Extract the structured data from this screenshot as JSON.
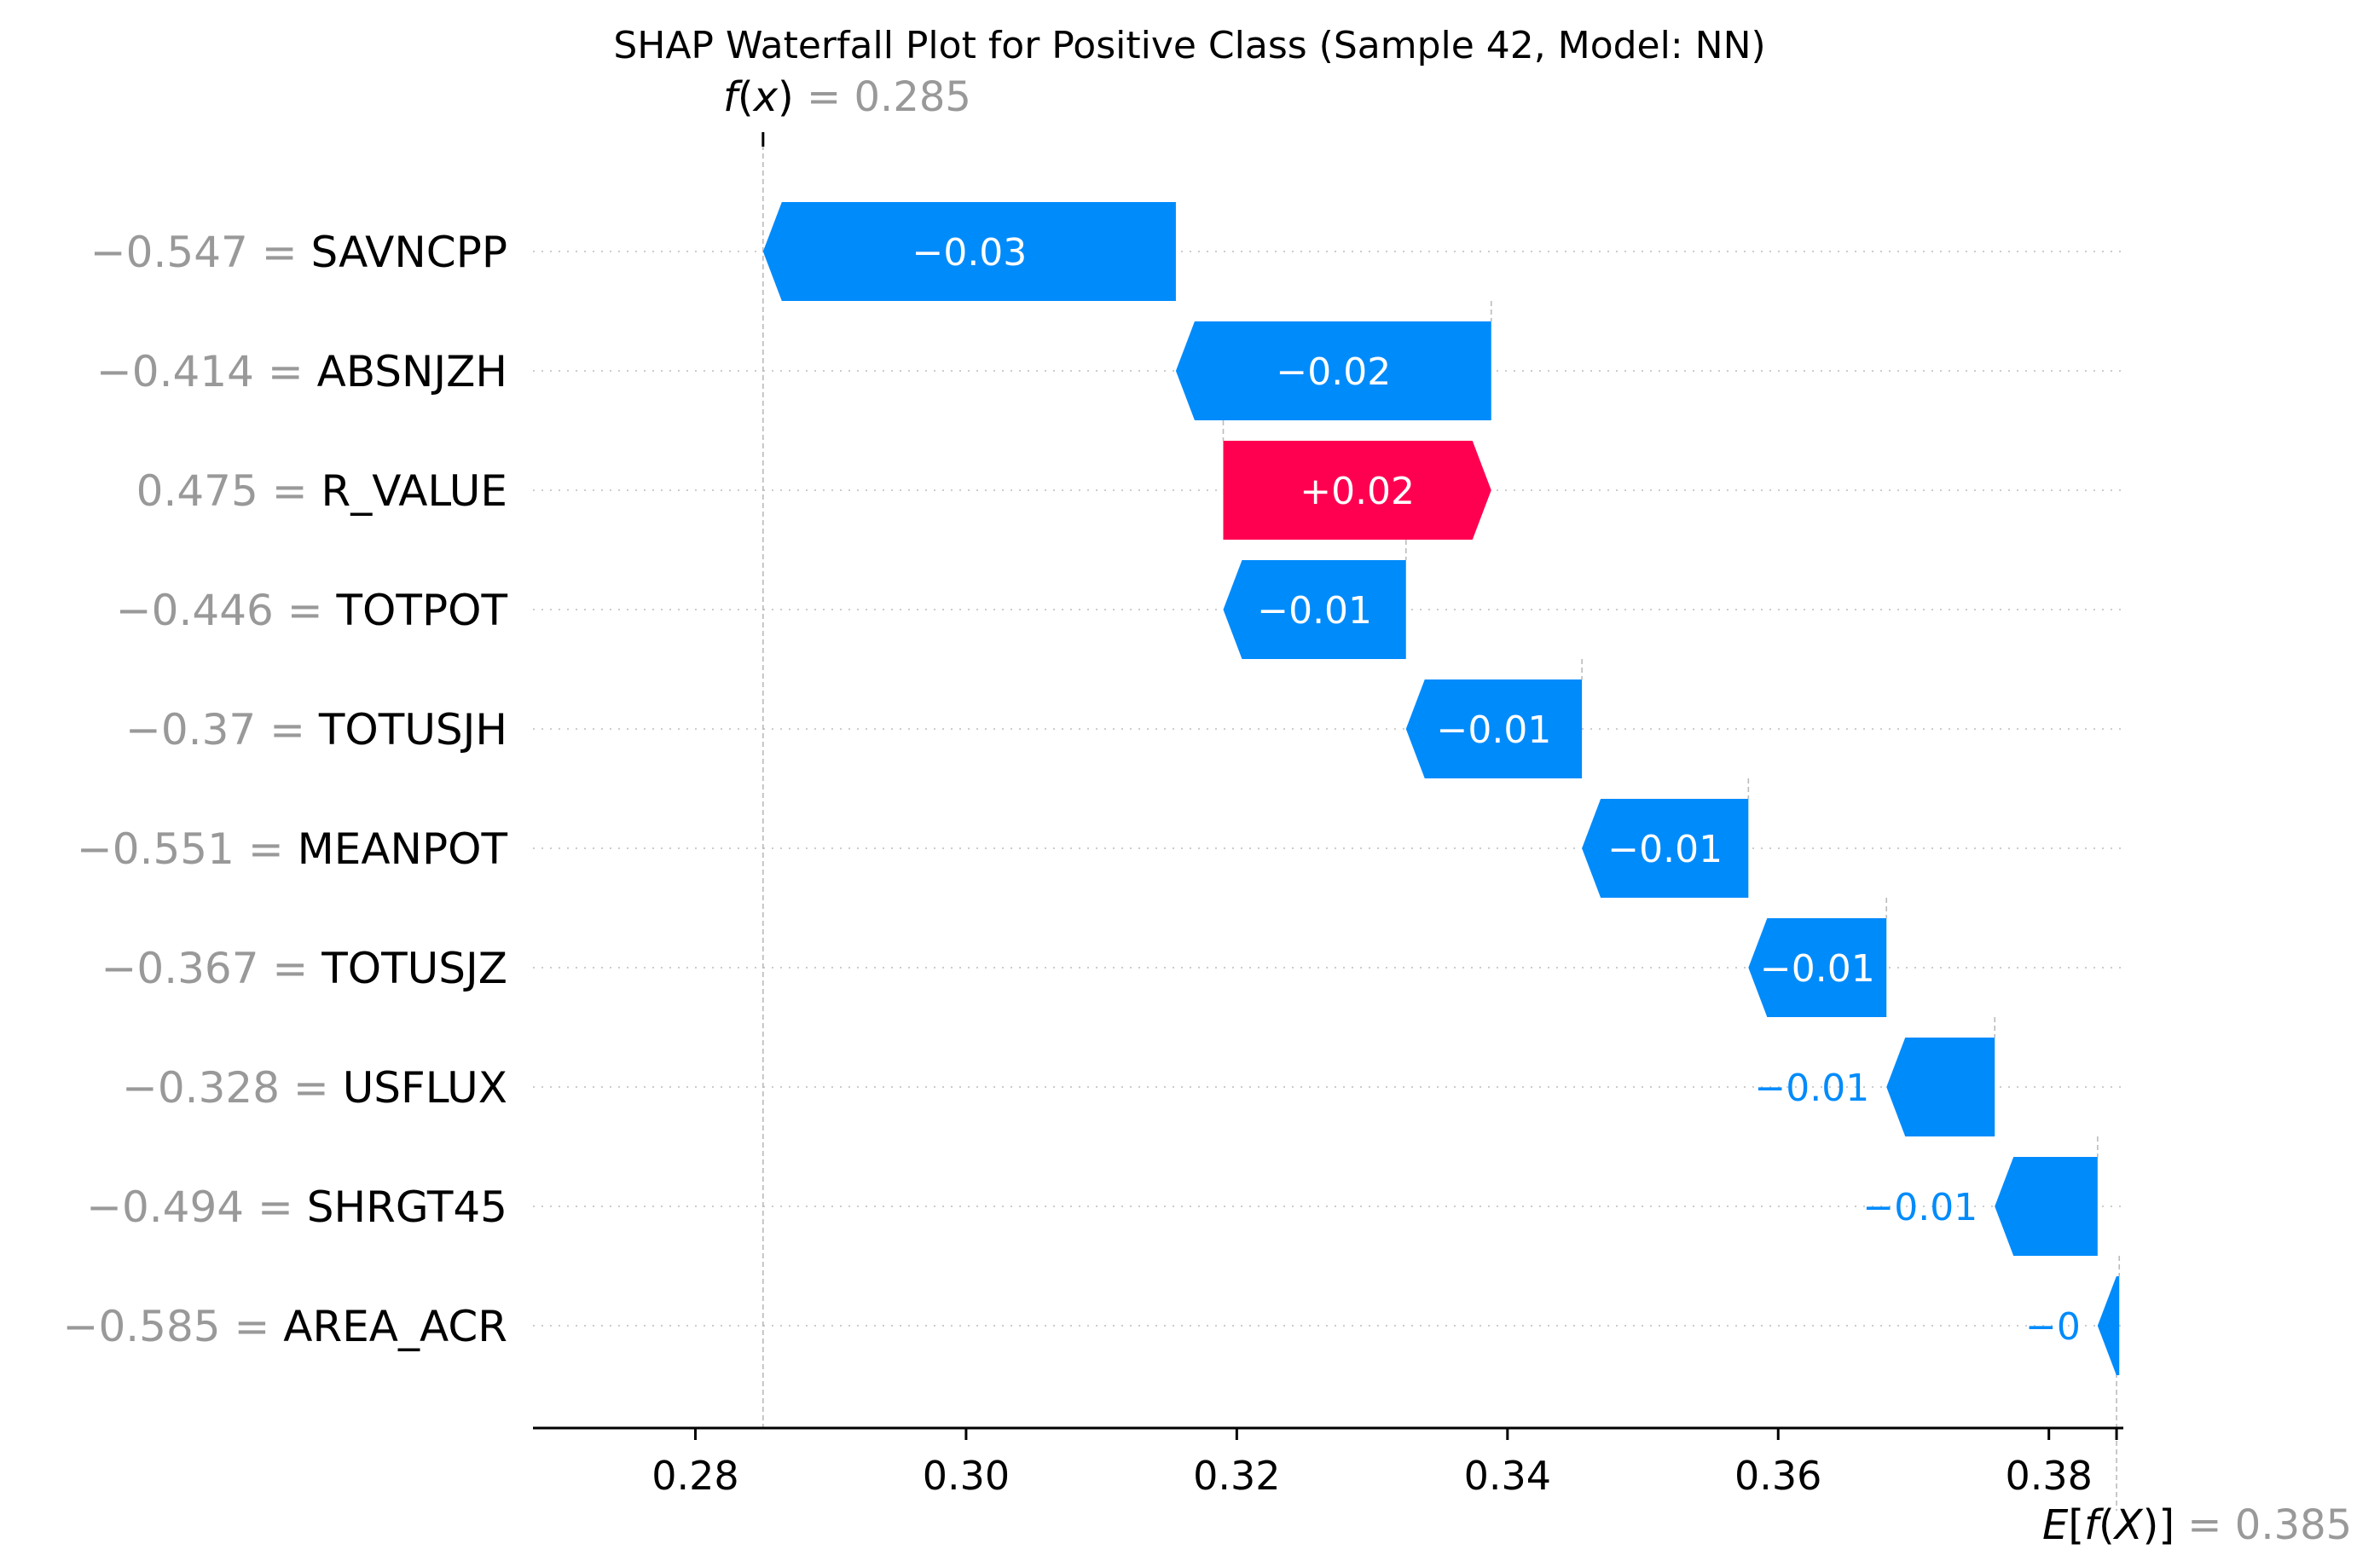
{
  "chart_data": {
    "type": "waterfall",
    "title": "SHAP Waterfall Plot for Positive Class (Sample 42, Model: NN)",
    "fx": {
      "label": "f(x)",
      "value": 0.285,
      "value_text": "0.285"
    },
    "base": {
      "label": "E[f(X)]",
      "value": 0.385,
      "value_text": "0.385"
    },
    "xlim": [
      0.268,
      0.3855
    ],
    "xticks": [
      0.28,
      0.3,
      0.32,
      0.34,
      0.36,
      0.38
    ],
    "xtick_labels": [
      "0.28",
      "0.30",
      "0.32",
      "0.34",
      "0.36",
      "0.38"
    ],
    "grid": "horizontal dotted per feature",
    "colors": {
      "negative": "#008bfb",
      "positive": "#ff0051",
      "muted": "#999999"
    },
    "features": [
      {
        "name": "SAVNCPP",
        "value_text": "−0.547",
        "start": 0.3155,
        "end": 0.285,
        "label": "−0.03"
      },
      {
        "name": "ABSNJZH",
        "value_text": "−0.414",
        "start": 0.3388,
        "end": 0.3155,
        "label": "−0.02"
      },
      {
        "name": "R_VALUE",
        "value_text": "0.475",
        "start": 0.319,
        "end": 0.3388,
        "label": "+0.02"
      },
      {
        "name": "TOTPOT",
        "value_text": "−0.446",
        "start": 0.3325,
        "end": 0.319,
        "label": "−0.01"
      },
      {
        "name": "TOTUSJH",
        "value_text": "−0.37",
        "start": 0.3455,
        "end": 0.3325,
        "label": "−0.01"
      },
      {
        "name": "MEANPOT",
        "value_text": "−0.551",
        "start": 0.3578,
        "end": 0.3455,
        "label": "−0.01"
      },
      {
        "name": "TOTUSJZ",
        "value_text": "−0.367",
        "start": 0.368,
        "end": 0.3578,
        "label": "−0.01"
      },
      {
        "name": "USFLUX",
        "value_text": "−0.328",
        "start": 0.376,
        "end": 0.368,
        "label": "−0.01"
      },
      {
        "name": "SHRGT45",
        "value_text": "−0.494",
        "start": 0.3836,
        "end": 0.376,
        "label": "−0.01"
      },
      {
        "name": "AREA_ACR",
        "value_text": "−0.585",
        "start": 0.3852,
        "end": 0.3836,
        "label": "−0"
      }
    ]
  }
}
